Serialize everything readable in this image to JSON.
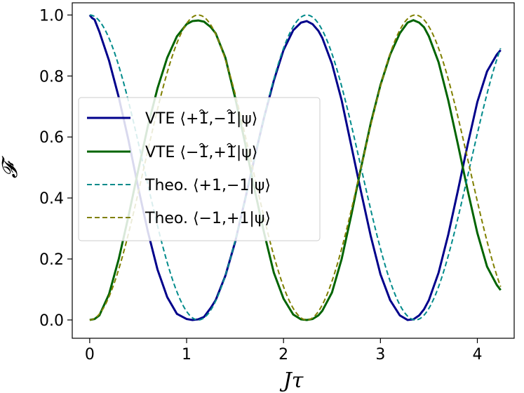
{
  "chart_data": {
    "type": "line",
    "xlabel": "Jτ",
    "ylabel": "𝓕",
    "xlim": [
      -0.18,
      4.38
    ],
    "ylim": [
      -0.06,
      1.04
    ],
    "xticks": [
      0,
      1,
      2,
      3,
      4
    ],
    "xtick_labels": [
      "0",
      "1",
      "2",
      "3",
      "4"
    ],
    "yticks": [
      0.0,
      0.2,
      0.4,
      0.6,
      0.8,
      1.0
    ],
    "ytick_labels": [
      "0.0",
      "0.2",
      "0.4",
      "0.6",
      "0.8",
      "1.0"
    ],
    "grid": false,
    "legend_position": "center-left",
    "series": [
      {
        "name": "VTE ⟨+1̃,−1̃|ψ⟩",
        "label_parts": [
          "VTE ⟨+",
          "1",
          ",−",
          "1",
          "|ψ⟩"
        ],
        "color": "#00008b",
        "style": "solid",
        "x": [
          0,
          0.025,
          0.05,
          0.1,
          0.2,
          0.3,
          0.4,
          0.5,
          0.6,
          0.7,
          0.8,
          0.9,
          1.0,
          1.06,
          1.12,
          1.18,
          1.25,
          1.3,
          1.4,
          1.5,
          1.6,
          1.7,
          1.8,
          1.9,
          2.0,
          2.1,
          2.18,
          2.24,
          2.3,
          2.36,
          2.4,
          2.5,
          2.6,
          2.7,
          2.8,
          2.9,
          3.0,
          3.1,
          3.2,
          3.28,
          3.34,
          3.4,
          3.45,
          3.5,
          3.6,
          3.7,
          3.8,
          3.9,
          4.0,
          4.1,
          4.2,
          4.24
        ],
        "y": [
          1.0,
          0.99,
          0.985,
          0.945,
          0.85,
          0.73,
          0.59,
          0.435,
          0.29,
          0.165,
          0.075,
          0.02,
          0.003,
          0.0,
          0.002,
          0.01,
          0.04,
          0.065,
          0.145,
          0.255,
          0.39,
          0.53,
          0.665,
          0.785,
          0.885,
          0.95,
          0.975,
          0.98,
          0.97,
          0.948,
          0.925,
          0.84,
          0.72,
          0.57,
          0.42,
          0.275,
          0.15,
          0.065,
          0.015,
          0.0,
          0.002,
          0.015,
          0.035,
          0.065,
          0.155,
          0.28,
          0.425,
          0.575,
          0.715,
          0.815,
          0.87,
          0.885
        ]
      },
      {
        "name": "VTE ⟨−1̃,+1̃|ψ⟩",
        "label_parts": [
          "VTE ⟨−",
          "1",
          ",+",
          "1",
          "|ψ⟩"
        ],
        "color": "#006400",
        "style": "solid",
        "x": [
          0,
          0.05,
          0.1,
          0.2,
          0.3,
          0.4,
          0.5,
          0.6,
          0.7,
          0.8,
          0.9,
          1.0,
          1.06,
          1.12,
          1.18,
          1.25,
          1.3,
          1.4,
          1.5,
          1.6,
          1.7,
          1.8,
          1.9,
          2.0,
          2.1,
          2.18,
          2.24,
          2.3,
          2.36,
          2.4,
          2.5,
          2.6,
          2.7,
          2.8,
          2.9,
          3.0,
          3.1,
          3.2,
          3.28,
          3.34,
          3.4,
          3.45,
          3.5,
          3.6,
          3.7,
          3.8,
          3.9,
          4.0,
          4.1,
          4.2,
          4.24
        ],
        "y": [
          0.0,
          0.003,
          0.015,
          0.085,
          0.2,
          0.34,
          0.49,
          0.635,
          0.76,
          0.86,
          0.93,
          0.97,
          0.98,
          0.982,
          0.978,
          0.96,
          0.94,
          0.86,
          0.73,
          0.585,
          0.43,
          0.285,
          0.155,
          0.07,
          0.018,
          0.002,
          0.0,
          0.003,
          0.015,
          0.03,
          0.09,
          0.2,
          0.345,
          0.5,
          0.645,
          0.77,
          0.87,
          0.94,
          0.975,
          0.983,
          0.975,
          0.96,
          0.93,
          0.845,
          0.72,
          0.575,
          0.425,
          0.285,
          0.175,
          0.115,
          0.098
        ]
      },
      {
        "name": "Theo. ⟨+1,−1|ψ⟩",
        "color": "#008b8b",
        "style": "dashed",
        "formula": "cos^2",
        "period": 2.24,
        "x_range": [
          0,
          4.24
        ]
      },
      {
        "name": "Theo. ⟨−1,+1|ψ⟩",
        "color": "#808000",
        "style": "dashed",
        "formula": "sin^2",
        "period": 2.24,
        "x_range": [
          0,
          4.24
        ]
      }
    ]
  }
}
